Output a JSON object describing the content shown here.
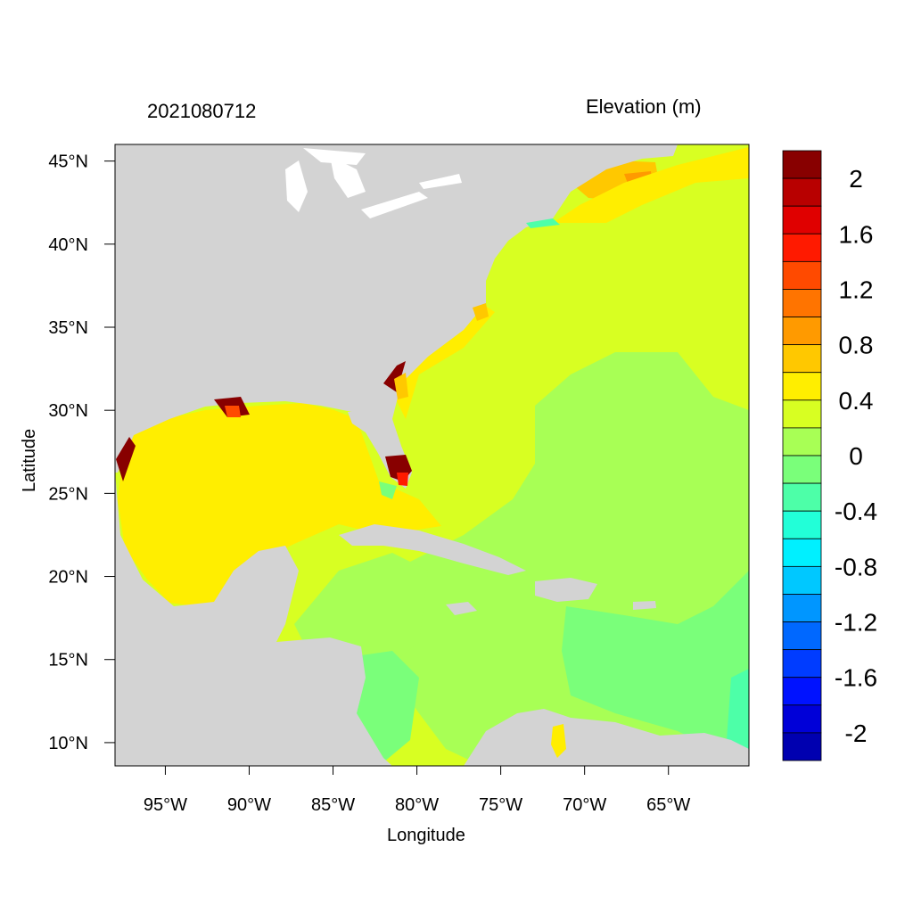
{
  "header": {
    "date_label": "2021080712",
    "variable_label": "Elevation (m)"
  },
  "axes": {
    "xlabel": "Longitude",
    "ylabel": "Latitude",
    "x_ticks": [
      "95°W",
      "90°W",
      "85°W",
      "80°W",
      "75°W",
      "70°W",
      "65°W"
    ],
    "y_ticks": [
      "45°N",
      "40°N",
      "35°N",
      "30°N",
      "25°N",
      "20°N",
      "15°N",
      "10°N"
    ],
    "x_tick_values": [
      -95,
      -90,
      -85,
      -80,
      -75,
      -70,
      -65
    ],
    "y_tick_values": [
      45,
      40,
      35,
      30,
      25,
      20,
      15,
      10
    ],
    "lon_range": [
      -98,
      -60.2
    ],
    "lat_range": [
      8.6,
      46
    ]
  },
  "colorbar": {
    "labels": [
      "2",
      "1.6",
      "1.2",
      "0.8",
      "0.4",
      "0",
      "-0.4",
      "-0.8",
      "-1.2",
      "-1.6",
      "-2"
    ],
    "colors": [
      "#880000",
      "#b80000",
      "#e00000",
      "#ff1a00",
      "#ff4a00",
      "#ff7400",
      "#ff9a00",
      "#ffc800",
      "#ffee00",
      "#d8ff22",
      "#a8ff55",
      "#7aff7a",
      "#4dffa8",
      "#22ffd8",
      "#00f0ff",
      "#00c8ff",
      "#0096ff",
      "#0068ff",
      "#003cff",
      "#0012ff",
      "#0000d8",
      "#0000b0"
    ]
  },
  "map_colors": {
    "land": "#d3d3d3",
    "lakes": "#ffffff",
    "gulf": "#ffee00",
    "atlantic": "#d8ff22",
    "caribbean": "#a8ff55",
    "low": "#7aff7a",
    "lower": "#4dffa8",
    "high_orange": "#ffc800",
    "surge": "#880000"
  }
}
